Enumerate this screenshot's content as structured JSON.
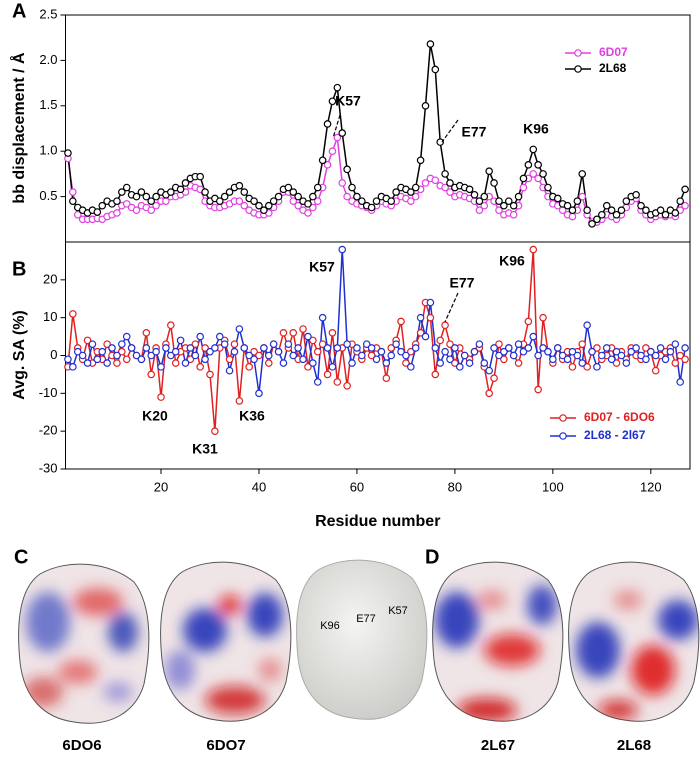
{
  "chart_data": [
    {
      "type": "line",
      "panel_label": "A",
      "y_label": "bb displacement / Å",
      "x": [
        1,
        2,
        3,
        4,
        5,
        6,
        7,
        8,
        9,
        10,
        11,
        12,
        13,
        14,
        15,
        16,
        17,
        18,
        19,
        20,
        21,
        22,
        23,
        24,
        25,
        26,
        27,
        28,
        29,
        30,
        31,
        32,
        33,
        34,
        35,
        36,
        37,
        38,
        39,
        40,
        41,
        42,
        43,
        44,
        45,
        46,
        47,
        48,
        49,
        50,
        51,
        52,
        53,
        54,
        55,
        56,
        57,
        58,
        59,
        60,
        61,
        62,
        63,
        64,
        65,
        66,
        67,
        68,
        69,
        70,
        71,
        72,
        73,
        74,
        75,
        76,
        77,
        78,
        79,
        80,
        81,
        82,
        83,
        84,
        85,
        86,
        87,
        88,
        89,
        90,
        91,
        92,
        93,
        94,
        95,
        96,
        97,
        98,
        99,
        100,
        101,
        102,
        103,
        104,
        105,
        106,
        107,
        108,
        109,
        110,
        111,
        112,
        113,
        114,
        115,
        116,
        117,
        118,
        119,
        120,
        121,
        122,
        123,
        124,
        125,
        126,
        127
      ],
      "series": [
        {
          "name": "6D07",
          "color": "#e040e0",
          "values": [
            0.92,
            0.55,
            0.3,
            0.25,
            0.25,
            0.25,
            0.26,
            0.25,
            0.28,
            0.3,
            0.32,
            0.4,
            0.42,
            0.38,
            0.35,
            0.4,
            0.38,
            0.35,
            0.4,
            0.45,
            0.45,
            0.5,
            0.5,
            0.52,
            0.55,
            0.62,
            0.6,
            0.58,
            0.45,
            0.4,
            0.38,
            0.38,
            0.4,
            0.42,
            0.45,
            0.45,
            0.4,
            0.35,
            0.32,
            0.3,
            0.3,
            0.32,
            0.38,
            0.45,
            0.55,
            0.55,
            0.45,
            0.4,
            0.35,
            0.32,
            0.38,
            0.45,
            0.6,
            0.85,
            1.0,
            1.15,
            0.65,
            0.5,
            0.45,
            0.42,
            0.4,
            0.38,
            0.35,
            0.4,
            0.45,
            0.42,
            0.4,
            0.45,
            0.5,
            0.48,
            0.45,
            0.5,
            0.58,
            0.65,
            0.7,
            0.68,
            0.62,
            0.6,
            0.55,
            0.5,
            0.52,
            0.5,
            0.48,
            0.45,
            0.35,
            0.4,
            0.5,
            0.45,
            0.35,
            0.3,
            0.32,
            0.3,
            0.4,
            0.6,
            0.7,
            0.75,
            0.7,
            0.6,
            0.5,
            0.42,
            0.4,
            0.35,
            0.3,
            0.28,
            0.35,
            0.5,
            0.3,
            0.22,
            0.22,
            0.25,
            0.3,
            0.28,
            0.25,
            0.3,
            0.38,
            0.45,
            0.48,
            0.35,
            0.3,
            0.25,
            0.28,
            0.3,
            0.28,
            0.3,
            0.28,
            0.35,
            0.4
          ]
        },
        {
          "name": "2L68",
          "color": "#000000",
          "values": [
            0.98,
            0.45,
            0.38,
            0.35,
            0.32,
            0.35,
            0.33,
            0.4,
            0.45,
            0.42,
            0.45,
            0.55,
            0.6,
            0.52,
            0.5,
            0.55,
            0.5,
            0.45,
            0.5,
            0.55,
            0.52,
            0.55,
            0.6,
            0.58,
            0.65,
            0.7,
            0.72,
            0.72,
            0.55,
            0.45,
            0.48,
            0.45,
            0.5,
            0.55,
            0.6,
            0.62,
            0.55,
            0.48,
            0.45,
            0.4,
            0.35,
            0.4,
            0.45,
            0.5,
            0.58,
            0.6,
            0.55,
            0.5,
            0.45,
            0.42,
            0.5,
            0.6,
            0.9,
            1.3,
            1.55,
            1.7,
            1.2,
            0.8,
            0.6,
            0.5,
            0.45,
            0.4,
            0.38,
            0.45,
            0.5,
            0.48,
            0.45,
            0.55,
            0.6,
            0.58,
            0.55,
            0.6,
            0.9,
            1.5,
            2.18,
            1.9,
            1.1,
            0.75,
            0.65,
            0.6,
            0.62,
            0.6,
            0.58,
            0.52,
            0.45,
            0.5,
            0.78,
            0.65,
            0.45,
            0.4,
            0.45,
            0.4,
            0.5,
            0.7,
            0.85,
            1.02,
            0.85,
            0.75,
            0.6,
            0.5,
            0.48,
            0.42,
            0.4,
            0.35,
            0.45,
            0.75,
            0.35,
            0.2,
            0.25,
            0.3,
            0.4,
            0.35,
            0.3,
            0.35,
            0.45,
            0.5,
            0.52,
            0.4,
            0.35,
            0.3,
            0.32,
            0.35,
            0.3,
            0.35,
            0.32,
            0.45,
            0.58
          ]
        }
      ],
      "xlim": [
        0.5,
        128
      ],
      "ylim": [
        0,
        2.5
      ],
      "yticks": [
        0.5,
        {
          "value": 1,
          "label": "1.0"
        },
        1.5,
        {
          "value": 2,
          "label": "2.0"
        },
        2.5
      ],
      "annotations": [
        "K57",
        "E77",
        "K96"
      ],
      "legend": "upper right"
    },
    {
      "type": "line",
      "panel_label": "B",
      "y_label": "Avg. SA (%)",
      "x_label": "Residue number",
      "x": [
        1,
        2,
        3,
        4,
        5,
        6,
        7,
        8,
        9,
        10,
        11,
        12,
        13,
        14,
        15,
        16,
        17,
        18,
        19,
        20,
        21,
        22,
        23,
        24,
        25,
        26,
        27,
        28,
        29,
        30,
        31,
        32,
        33,
        34,
        35,
        36,
        37,
        38,
        39,
        40,
        41,
        42,
        43,
        44,
        45,
        46,
        47,
        48,
        49,
        50,
        51,
        52,
        53,
        54,
        55,
        56,
        57,
        58,
        59,
        60,
        61,
        62,
        63,
        64,
        65,
        66,
        67,
        68,
        69,
        70,
        71,
        72,
        73,
        74,
        75,
        76,
        77,
        78,
        79,
        80,
        81,
        82,
        83,
        84,
        85,
        86,
        87,
        88,
        89,
        90,
        91,
        92,
        93,
        94,
        95,
        96,
        97,
        98,
        99,
        100,
        101,
        102,
        103,
        104,
        105,
        106,
        107,
        108,
        109,
        110,
        111,
        112,
        113,
        114,
        115,
        116,
        117,
        118,
        119,
        120,
        121,
        122,
        123,
        124,
        125,
        126,
        127
      ],
      "series": [
        {
          "name": "6D07 - 6DO6",
          "color": "#e02020",
          "values": [
            -3,
            11,
            2,
            -1,
            4,
            -2,
            1,
            -1,
            3,
            0,
            -2,
            1,
            -1,
            2,
            0,
            -1,
            6,
            -5,
            2,
            -11,
            3,
            8,
            -2,
            1,
            2,
            -1,
            3,
            -3,
            2,
            -5,
            -20,
            2,
            4,
            -1,
            3,
            -12,
            2,
            -3,
            1,
            0,
            2,
            -2,
            3,
            1,
            6,
            2,
            6,
            -1,
            7,
            -3,
            4,
            1,
            3,
            -5,
            6,
            -7,
            2,
            -8,
            3,
            1,
            -1,
            2,
            0,
            2,
            1,
            -6,
            2,
            4,
            9,
            -2,
            1,
            3,
            6,
            14,
            10,
            -5,
            4,
            8,
            3,
            -2,
            2,
            0,
            -1,
            1,
            2,
            -3,
            -10,
            -6,
            3,
            -1,
            2,
            0,
            -2,
            3,
            9,
            28,
            -9,
            10,
            1,
            -2,
            2,
            -1,
            1,
            -3,
            1,
            3,
            -3,
            1,
            2,
            -1,
            0,
            2,
            -2,
            1,
            -1,
            2,
            0,
            -1,
            2,
            1,
            -4,
            0,
            1,
            2,
            -2,
            0,
            -1
          ]
        },
        {
          "name": "2L68 - 2l67",
          "color": "#2030d0",
          "values": [
            -1,
            -3,
            1,
            0,
            -2,
            3,
            -1,
            1,
            -2,
            2,
            0,
            3,
            5,
            2,
            0,
            -1,
            2,
            0,
            1,
            -3,
            2,
            0,
            1,
            4,
            -2,
            2,
            0,
            5,
            -1,
            1,
            2,
            5,
            3,
            -4,
            1,
            7,
            2,
            0,
            -1,
            -10,
            2,
            0,
            3,
            1,
            -2,
            3,
            0,
            2,
            -1,
            5,
            -2,
            -7,
            10,
            2,
            -3,
            2,
            28,
            3,
            -2,
            2,
            0,
            3,
            2,
            -1,
            1,
            -2,
            0,
            3,
            1,
            0,
            -3,
            2,
            10,
            5,
            14,
            2,
            -2,
            1,
            -1,
            2,
            -3,
            0,
            -2,
            1,
            3,
            -2,
            -4,
            2,
            0,
            1,
            2,
            0,
            3,
            1,
            2,
            5,
            0,
            2,
            1,
            -1,
            2,
            0,
            -1,
            1,
            0,
            -2,
            8,
            1,
            -3,
            0,
            2,
            -1,
            1,
            0,
            -2,
            1,
            2,
            0,
            -1,
            1,
            0,
            2,
            -1,
            1,
            3,
            -7,
            2
          ]
        }
      ],
      "xlim": [
        0.5,
        128
      ],
      "ylim": [
        -30,
        30
      ],
      "xticks": [
        20,
        40,
        60,
        80,
        100,
        120
      ],
      "yticks": [
        -30,
        -20,
        -10,
        0,
        10,
        20
      ],
      "annotations": [
        "K57",
        "E77",
        "K96",
        "K20",
        "K31",
        "K36"
      ],
      "legend": "lower right"
    }
  ],
  "panels": {
    "c_label": "C",
    "d_label": "D",
    "structures": [
      "6DO6",
      "6DO7",
      "2L67",
      "2L68"
    ],
    "residue_labels": [
      "K96",
      "E77",
      "K57"
    ]
  }
}
